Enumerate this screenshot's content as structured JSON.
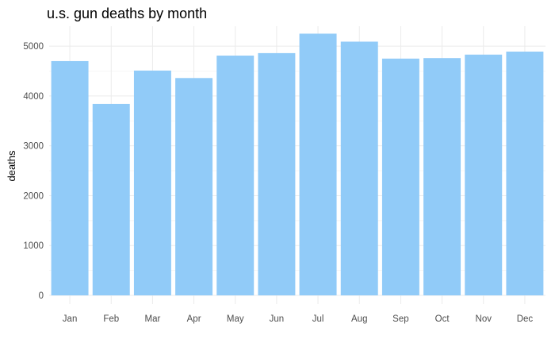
{
  "chart_data": {
    "type": "bar",
    "title": "u.s. gun deaths by month",
    "xlabel": "",
    "ylabel": "deaths",
    "categories": [
      "Jan",
      "Feb",
      "Mar",
      "Apr",
      "May",
      "Jun",
      "Jul",
      "Aug",
      "Sep",
      "Oct",
      "Nov",
      "Dec"
    ],
    "values": [
      4700,
      3840,
      4510,
      4360,
      4810,
      4860,
      5250,
      5090,
      4750,
      4760,
      4830,
      4890
    ],
    "ylim": [
      0,
      5400
    ],
    "yticks": [
      0,
      1000,
      2000,
      3000,
      4000,
      5000
    ],
    "ytick_labels": [
      "0",
      "1000",
      "2000",
      "3000",
      "4000",
      "5000"
    ],
    "grid": true,
    "bar_color": "#91CBF8"
  }
}
